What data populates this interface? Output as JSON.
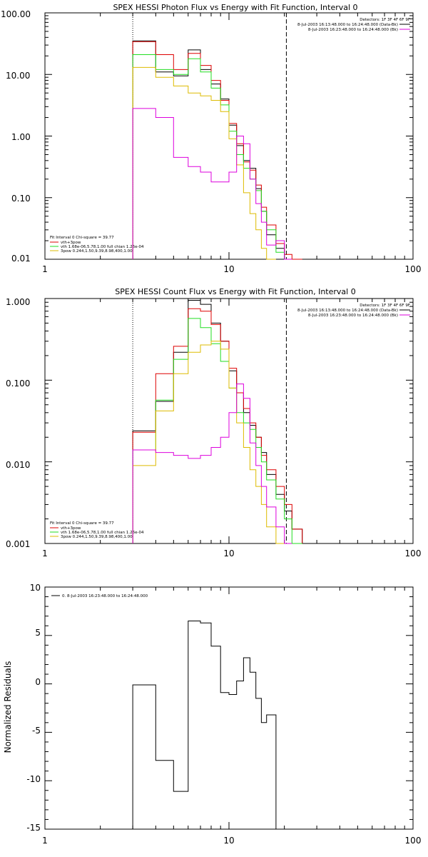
{
  "colors": {
    "black": "#000000",
    "red": "#dd0000",
    "green": "#22dd22",
    "yellow": "#ddbb00",
    "magenta": "#dd00dd"
  },
  "chart_data": [
    {
      "type": "line",
      "title": "SPEX HESSI Photon Flux vs Energy with Fit Function, Interval 0",
      "xlabel": "",
      "ylabel": "",
      "xscale": "log",
      "yscale": "log",
      "xlim": [
        1,
        100
      ],
      "ylim": [
        0.01,
        100
      ],
      "xticks": [
        "1",
        "10",
        "100"
      ],
      "yticks": [
        "100.00",
        "10.00",
        "1.00",
        "0.10",
        "0.01"
      ],
      "detectors": "Detectors: 1F 3F 4F 6F 9F",
      "time_labels": [
        "8-Jul-2003 16:13:48.000 to 16:24:48.000 (Data-Bk)",
        "8-Jul-2003 16:23:48.000 to 16:24:48.000 (Bk)"
      ],
      "legend": [
        "Fit Interval 0   Chi-square = 39.77",
        "vth+3pow",
        "vth 1.68e-06,5.78,1.00  full chian 1.26e-04",
        "3pow 0.244,1.50,9.39,8.98,400,1.00"
      ],
      "vlines": [
        3,
        20.5
      ],
      "bin_edges": [
        3,
        4,
        5,
        6,
        7,
        8,
        9,
        10,
        11,
        12,
        13,
        14,
        15,
        16,
        18,
        20,
        22,
        25
      ],
      "series": [
        {
          "name": "data",
          "color": "black",
          "values": [
            35,
            11,
            9.5,
            25,
            12,
            7,
            4,
            1.5,
            0.7,
            0.4,
            0.3,
            0.14,
            0.06,
            0.025,
            0.015,
            0.01,
            null
          ]
        },
        {
          "name": "vth+3pow",
          "color": "red",
          "values": [
            34,
            21,
            12,
            22,
            14,
            8,
            3.8,
            1.6,
            0.75,
            0.38,
            0.28,
            0.16,
            0.07,
            0.036,
            0.018,
            0.012,
            0.01
          ]
        },
        {
          "name": "vth",
          "color": "green",
          "values": [
            21,
            12,
            10,
            18,
            11,
            6,
            3.2,
            1.2,
            0.5,
            0.3,
            0.2,
            0.13,
            0.06,
            0.03,
            0.013,
            0.01,
            null
          ]
        },
        {
          "name": "3pow",
          "color": "yellow",
          "values": [
            13,
            9,
            6.5,
            5,
            4.5,
            3.8,
            2.5,
            0.9,
            0.34,
            0.12,
            0.055,
            0.03,
            0.015,
            0.01,
            null,
            null,
            null
          ]
        },
        {
          "name": "Bk",
          "color": "magenta",
          "values": [
            2.8,
            2,
            0.45,
            0.32,
            0.26,
            0.18,
            0.18,
            0.26,
            1.0,
            0.75,
            0.2,
            0.08,
            0.04,
            0.017,
            0.02,
            0.01,
            null
          ]
        }
      ]
    },
    {
      "type": "line",
      "title": "SPEX HESSI Count Flux vs Energy with Fit Function, Interval 0",
      "xlabel": "",
      "ylabel": "",
      "xscale": "log",
      "yscale": "log",
      "xlim": [
        1,
        100
      ],
      "ylim": [
        0.001,
        1
      ],
      "xticks": [
        "1",
        "10",
        "100"
      ],
      "yticks": [
        "1.000",
        "0.100",
        "0.010",
        "0.001"
      ],
      "detectors": "Detectors: 1F 3F 4F 6F 9F",
      "time_labels": [
        "8-Jul-2003 16:13:48.000 to 16:24:48.000 (Data-Bk)",
        "8-Jul-2003 16:23:48.000 to 16:24:48.000 (Bk)"
      ],
      "legend": [
        "Fit Interval 0   Chi-square = 39.77",
        "vth+3pow",
        "vth 1.68e-06,5.78,1.00  full chian 1.26e-04",
        "3pow 0.244,1.50,9.39,8.98,400,1.00"
      ],
      "vlines": [
        3,
        20.5
      ],
      "bin_edges": [
        3,
        4,
        5,
        6,
        7,
        8,
        9,
        10,
        11,
        12,
        13,
        14,
        15,
        16,
        18,
        20,
        22,
        25
      ],
      "series": [
        {
          "name": "data",
          "color": "black",
          "values": [
            0.024,
            0.055,
            0.22,
            0.95,
            0.85,
            0.5,
            0.3,
            0.13,
            0.07,
            0.04,
            0.028,
            0.02,
            0.013,
            0.007,
            0.004,
            0.0025,
            0.0015
          ]
        },
        {
          "name": "vth+3pow",
          "color": "red",
          "values": [
            0.023,
            0.12,
            0.26,
            0.75,
            0.7,
            0.48,
            0.3,
            0.14,
            0.07,
            0.045,
            0.03,
            0.02,
            0.012,
            0.008,
            0.005,
            0.003,
            0.0015
          ]
        },
        {
          "name": "vth",
          "color": "green",
          "values": [
            0.014,
            0.057,
            0.18,
            0.57,
            0.44,
            0.28,
            0.17,
            0.08,
            0.04,
            0.03,
            0.025,
            0.015,
            0.01,
            0.006,
            0.0035,
            0.002,
            0.001
          ]
        },
        {
          "name": "3pow",
          "color": "yellow",
          "values": [
            0.009,
            0.042,
            0.12,
            0.22,
            0.27,
            0.3,
            0.24,
            0.08,
            0.03,
            0.015,
            0.008,
            0.005,
            0.003,
            0.0016,
            0.001,
            null,
            null
          ]
        },
        {
          "name": "Bk",
          "color": "magenta",
          "values": [
            0.014,
            0.013,
            0.012,
            0.011,
            0.012,
            0.015,
            0.02,
            0.04,
            0.09,
            0.06,
            0.017,
            0.009,
            0.005,
            0.0028,
            0.0016,
            0.001,
            null
          ]
        }
      ]
    },
    {
      "type": "line",
      "title": "",
      "xlabel": "",
      "ylabel": "Normalized Residuals",
      "xscale": "log",
      "yscale": "linear",
      "xlim": [
        1,
        100
      ],
      "ylim": [
        -15,
        10
      ],
      "xticks": [
        "1",
        "10",
        "100"
      ],
      "yticks": [
        "10",
        "5",
        "0",
        "-5",
        "-10",
        "-15"
      ],
      "legend": [
        "0.  8-Jul-2003 16:23:48.000 to 16:24:48.000"
      ],
      "bin_edges": [
        3,
        4,
        5,
        6,
        7,
        8,
        9,
        10,
        11,
        12,
        13,
        14,
        15,
        16,
        18,
        20
      ],
      "series": [
        {
          "name": "",
          "color": "black",
          "values": [
            -0.1,
            -7.9,
            -11.1,
            6.5,
            6.3,
            3.9,
            -0.9,
            -1.1,
            0.3,
            2.7,
            1.2,
            -1.5,
            -4.0,
            -3.2,
            -15
          ]
        }
      ]
    }
  ]
}
